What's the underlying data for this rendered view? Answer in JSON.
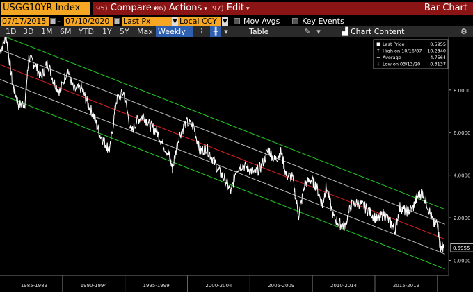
{
  "header": {
    "ticker": "USGG10YR Index",
    "compare_num": "95)",
    "compare_label": "Compare",
    "actions_num": "96)",
    "actions_label": "Actions",
    "edit_num": "97)",
    "edit_label": "Edit",
    "chart_title": "Bar Chart"
  },
  "controls": {
    "start_date": "07/17/2015",
    "end_date": "07/10/2020",
    "price_field": "Last Px",
    "currency": "Local CCY",
    "mov_avgs": "Mov Avgs",
    "key_events": "Key Events"
  },
  "toolbar": {
    "periods": [
      "1D",
      "3D",
      "1M",
      "6M",
      "YTD",
      "1Y",
      "5Y",
      "Max"
    ],
    "frequency": "Weekly",
    "table": "Table",
    "chart_content": "Chart Content"
  },
  "colors": {
    "accent_orange": "#f5a623",
    "header_red": "#8b1414",
    "selected_blue": "#2f5fb0",
    "series": "#ffffff",
    "regression": "#e02020",
    "outer_band": "#22cc22",
    "inner_band": "#bdbdbd"
  },
  "chart_data": {
    "type": "line",
    "legend": [
      {
        "label": "Last Price",
        "value": "0.5955"
      },
      {
        "label": "High on 10/16/87",
        "value": "10.2340"
      },
      {
        "label": "Average",
        "value": "4.7564"
      },
      {
        "label": "Low on 03/13/20",
        "value": "0.3137"
      }
    ],
    "legend_position": "top-right",
    "last_value_label": "0.5955",
    "y_ticks": [
      "0.0000",
      "2.0000",
      "4.0000",
      "6.0000",
      "8.0000"
    ],
    "x_ticks": [
      "1985-1989",
      "1990-1994",
      "1995-1999",
      "2000-2004",
      "2005-2009",
      "2010-2014",
      "2015-2019"
    ],
    "ylim": [
      -0.7,
      10.5
    ],
    "xlim": [
      1985.0,
      2020.9
    ],
    "grid": false,
    "series": [
      {
        "x": [
          1985.0,
          1985.5,
          1986.0,
          1986.5,
          1987.0,
          1987.3,
          1987.8,
          1988.3,
          1988.8,
          1989.3,
          1989.8,
          1990.4,
          1990.9,
          1991.5,
          1992.0,
          1992.5,
          1993.0,
          1993.5,
          1993.8,
          1994.3,
          1994.9,
          1995.5,
          1996.0,
          1996.5,
          1997.0,
          1997.5,
          1998.0,
          1998.5,
          1998.8,
          1999.3,
          1999.9,
          2000.5,
          2001.0,
          2001.5,
          2002.0,
          2002.5,
          2003.0,
          2003.5,
          2003.9,
          2004.4,
          2004.9,
          2005.4,
          2005.9,
          2006.5,
          2007.0,
          2007.5,
          2007.9,
          2008.4,
          2008.9,
          2009.4,
          2009.9,
          2010.3,
          2010.8,
          2011.1,
          2011.7,
          2012.2,
          2012.6,
          2013.1,
          2013.7,
          2014.2,
          2014.7,
          2015.2,
          2015.7,
          2016.2,
          2016.6,
          2017.0,
          2017.5,
          2018.0,
          2018.4,
          2018.8,
          2019.2,
          2019.7,
          2020.0,
          2020.2,
          2020.5
        ],
        "y": [
          9.8,
          10.5,
          8.3,
          7.3,
          7.4,
          9.5,
          9.2,
          8.6,
          9.3,
          8.4,
          7.9,
          9.0,
          8.0,
          8.1,
          7.4,
          6.8,
          5.9,
          5.4,
          5.2,
          7.5,
          7.9,
          6.0,
          6.6,
          6.8,
          6.3,
          6.1,
          5.5,
          5.0,
          4.3,
          5.8,
          6.5,
          6.3,
          5.1,
          5.3,
          4.8,
          4.2,
          3.8,
          3.2,
          4.3,
          4.5,
          4.3,
          4.1,
          4.4,
          5.2,
          4.7,
          5.1,
          4.0,
          3.9,
          2.1,
          3.6,
          3.8,
          3.5,
          2.6,
          3.5,
          2.0,
          1.7,
          1.6,
          2.6,
          2.7,
          2.5,
          2.2,
          1.9,
          2.2,
          1.8,
          1.4,
          2.5,
          2.3,
          2.4,
          3.0,
          3.2,
          2.6,
          1.7,
          1.8,
          0.7,
          0.6
        ]
      }
    ],
    "regression_line": {
      "x": [
        1985.0,
        2020.6
      ],
      "y": [
        9.2,
        1.0
      ]
    },
    "outer_band_upper": {
      "x": [
        1985.0,
        2020.6
      ],
      "y": [
        10.6,
        2.4
      ]
    },
    "inner_band_upper": {
      "x": [
        1985.0,
        2020.6
      ],
      "y": [
        9.9,
        1.7
      ]
    },
    "inner_band_lower": {
      "x": [
        1985.0,
        2020.6
      ],
      "y": [
        8.5,
        0.3
      ]
    },
    "outer_band_lower": {
      "x": [
        1985.0,
        2020.6
      ],
      "y": [
        7.8,
        -0.4
      ]
    }
  }
}
